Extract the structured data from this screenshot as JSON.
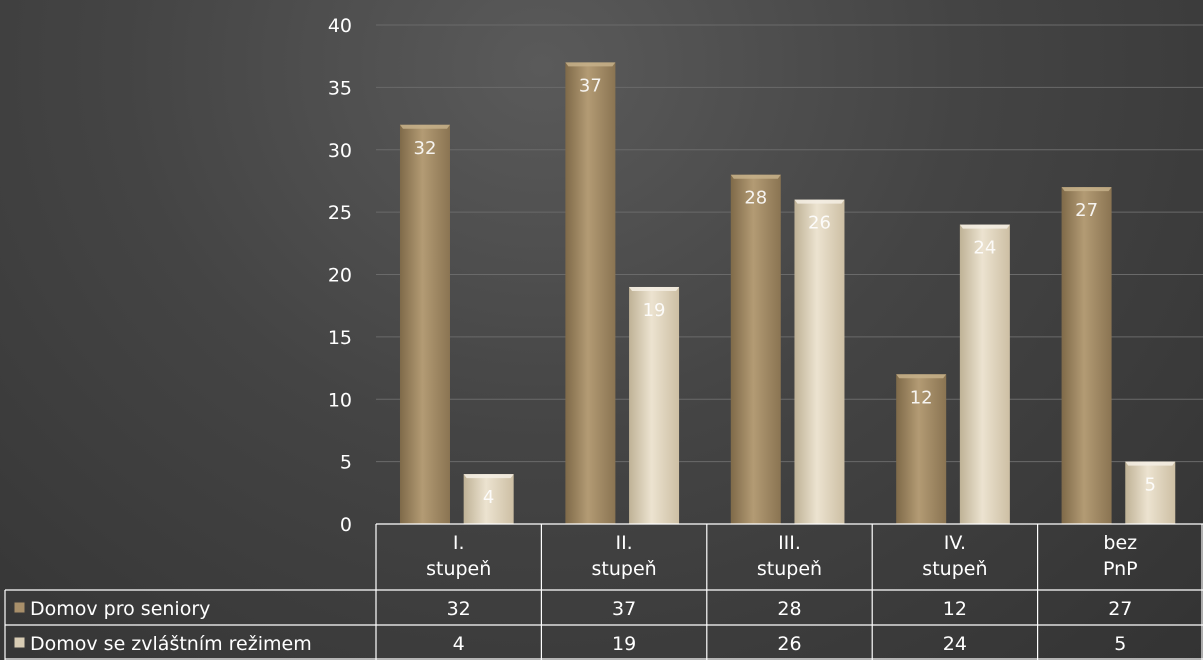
{
  "chart_data": {
    "type": "bar",
    "title": "",
    "xlabel": "",
    "ylabel": "",
    "ylim": [
      0,
      40
    ],
    "yticks": [
      0,
      5,
      10,
      15,
      20,
      25,
      30,
      35,
      40
    ],
    "grid": true,
    "legend": "data-table",
    "categories": [
      [
        "I.",
        "stupeň"
      ],
      [
        "II.",
        "stupeň"
      ],
      [
        "III.",
        "stupeň"
      ],
      [
        "IV.",
        "stupeň"
      ],
      [
        "bez",
        "PnP"
      ]
    ],
    "series": [
      {
        "name": "Domov pro seniory",
        "color": "#a88f6a",
        "values": [
          32,
          37,
          28,
          12,
          27
        ]
      },
      {
        "name": "Domov se zvláštním režimem",
        "color": "#d8ccb4",
        "values": [
          4,
          19,
          26,
          24,
          5
        ]
      }
    ]
  }
}
